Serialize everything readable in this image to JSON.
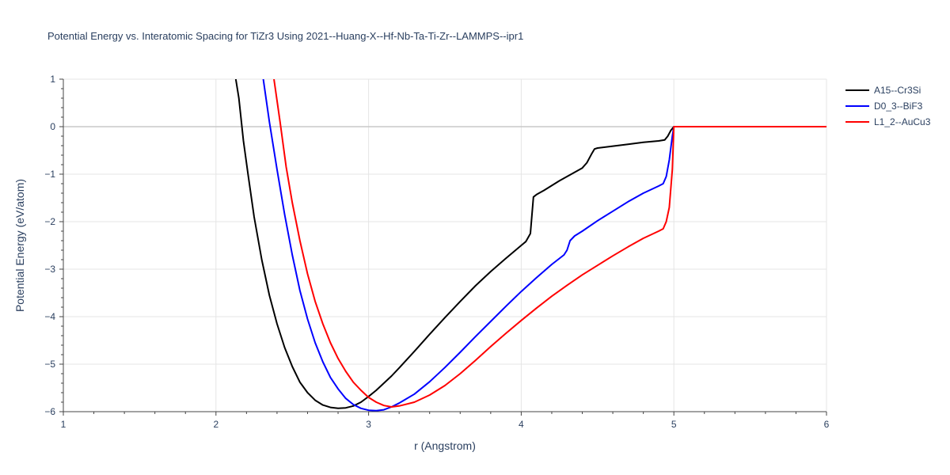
{
  "chart_data": {
    "type": "line",
    "title": "Potential Energy vs. Interatomic Spacing for TiZr3 Using 2021--Huang-X--Hf-Nb-Ta-Ti-Zr--LAMMPS--ipr1",
    "xlabel": "r (Angstrom)",
    "ylabel": "Potential Energy (eV/atom)",
    "xlim": [
      1,
      6
    ],
    "ylim": [
      -6,
      1
    ],
    "xticks": [
      1,
      2,
      3,
      4,
      5,
      6
    ],
    "yticks": [
      1,
      0,
      -1,
      -2,
      -3,
      -4,
      -5,
      -6
    ],
    "xtick_labels": [
      "1",
      "2",
      "3",
      "4",
      "5",
      "6"
    ],
    "ytick_labels": [
      "1",
      "0",
      "−1",
      "−2",
      "−3",
      "−4",
      "−5",
      "−6"
    ],
    "grid": true,
    "legend_position": "top-right",
    "series": [
      {
        "name": "A15--Cr3Si",
        "color": "#000000",
        "x": [
          2.13,
          2.15,
          2.18,
          2.21,
          2.25,
          2.3,
          2.35,
          2.4,
          2.45,
          2.5,
          2.55,
          2.6,
          2.65,
          2.7,
          2.75,
          2.8,
          2.85,
          2.9,
          2.95,
          3.0,
          3.05,
          3.1,
          3.15,
          3.2,
          3.3,
          3.4,
          3.5,
          3.6,
          3.7,
          3.8,
          3.9,
          4.0,
          4.03,
          4.06,
          4.08,
          4.1,
          4.15,
          4.2,
          4.25,
          4.3,
          4.35,
          4.4,
          4.43,
          4.46,
          4.48,
          4.5,
          4.6,
          4.7,
          4.8,
          4.9,
          4.94,
          4.96,
          4.98,
          5.0,
          5.2,
          5.4,
          5.6,
          5.8,
          6.0
        ],
        "y": [
          1.0,
          0.6,
          -0.3,
          -1.0,
          -1.9,
          -2.8,
          -3.55,
          -4.15,
          -4.65,
          -5.05,
          -5.38,
          -5.6,
          -5.76,
          -5.86,
          -5.91,
          -5.93,
          -5.92,
          -5.88,
          -5.8,
          -5.68,
          -5.55,
          -5.4,
          -5.25,
          -5.08,
          -4.73,
          -4.37,
          -4.02,
          -3.68,
          -3.35,
          -3.05,
          -2.77,
          -2.5,
          -2.42,
          -2.25,
          -1.48,
          -1.43,
          -1.34,
          -1.24,
          -1.14,
          -1.05,
          -0.96,
          -0.87,
          -0.76,
          -0.58,
          -0.47,
          -0.45,
          -0.41,
          -0.37,
          -0.33,
          -0.3,
          -0.28,
          -0.2,
          -0.08,
          0.0,
          0.0,
          0.0,
          0.0,
          0.0,
          0.0
        ]
      },
      {
        "name": "D0_3--BiF3",
        "color": "#0000ff",
        "x": [
          2.31,
          2.35,
          2.4,
          2.45,
          2.5,
          2.55,
          2.6,
          2.65,
          2.7,
          2.75,
          2.8,
          2.85,
          2.9,
          2.95,
          3.0,
          3.05,
          3.1,
          3.15,
          3.2,
          3.3,
          3.4,
          3.5,
          3.6,
          3.7,
          3.8,
          3.9,
          4.0,
          4.1,
          4.2,
          4.28,
          4.3,
          4.32,
          4.35,
          4.4,
          4.5,
          4.6,
          4.7,
          4.8,
          4.9,
          4.93,
          4.95,
          4.97,
          4.99,
          5.0,
          5.2,
          5.4,
          5.6,
          5.8,
          6.0
        ],
        "y": [
          1.0,
          0.1,
          -0.9,
          -1.85,
          -2.7,
          -3.45,
          -4.05,
          -4.55,
          -4.95,
          -5.28,
          -5.52,
          -5.72,
          -5.85,
          -5.93,
          -5.97,
          -5.98,
          -5.96,
          -5.9,
          -5.82,
          -5.63,
          -5.37,
          -5.07,
          -4.75,
          -4.42,
          -4.1,
          -3.78,
          -3.47,
          -3.18,
          -2.9,
          -2.7,
          -2.6,
          -2.4,
          -2.3,
          -2.2,
          -1.98,
          -1.78,
          -1.58,
          -1.4,
          -1.25,
          -1.2,
          -1.05,
          -0.7,
          -0.2,
          0.0,
          0.0,
          0.0,
          0.0,
          0.0,
          0.0
        ]
      },
      {
        "name": "L1_2--AuCu3",
        "color": "#ff0000",
        "x": [
          2.38,
          2.42,
          2.46,
          2.5,
          2.55,
          2.6,
          2.65,
          2.7,
          2.75,
          2.8,
          2.85,
          2.9,
          2.95,
          3.0,
          3.05,
          3.1,
          3.15,
          3.2,
          3.3,
          3.4,
          3.5,
          3.6,
          3.7,
          3.8,
          3.9,
          4.0,
          4.1,
          4.2,
          4.3,
          4.4,
          4.5,
          4.6,
          4.7,
          4.8,
          4.9,
          4.93,
          4.95,
          4.97,
          4.99,
          5.0,
          5.2,
          5.4,
          5.6,
          5.8,
          6.0
        ],
        "y": [
          1.0,
          0.1,
          -0.85,
          -1.6,
          -2.4,
          -3.1,
          -3.68,
          -4.15,
          -4.55,
          -4.88,
          -5.15,
          -5.38,
          -5.55,
          -5.7,
          -5.8,
          -5.87,
          -5.9,
          -5.88,
          -5.8,
          -5.65,
          -5.45,
          -5.2,
          -4.92,
          -4.63,
          -4.35,
          -4.08,
          -3.82,
          -3.57,
          -3.34,
          -3.12,
          -2.92,
          -2.72,
          -2.53,
          -2.35,
          -2.2,
          -2.15,
          -2.0,
          -1.7,
          -0.9,
          0.0,
          0.0,
          0.0,
          0.0,
          0.0,
          0.0
        ]
      }
    ]
  }
}
